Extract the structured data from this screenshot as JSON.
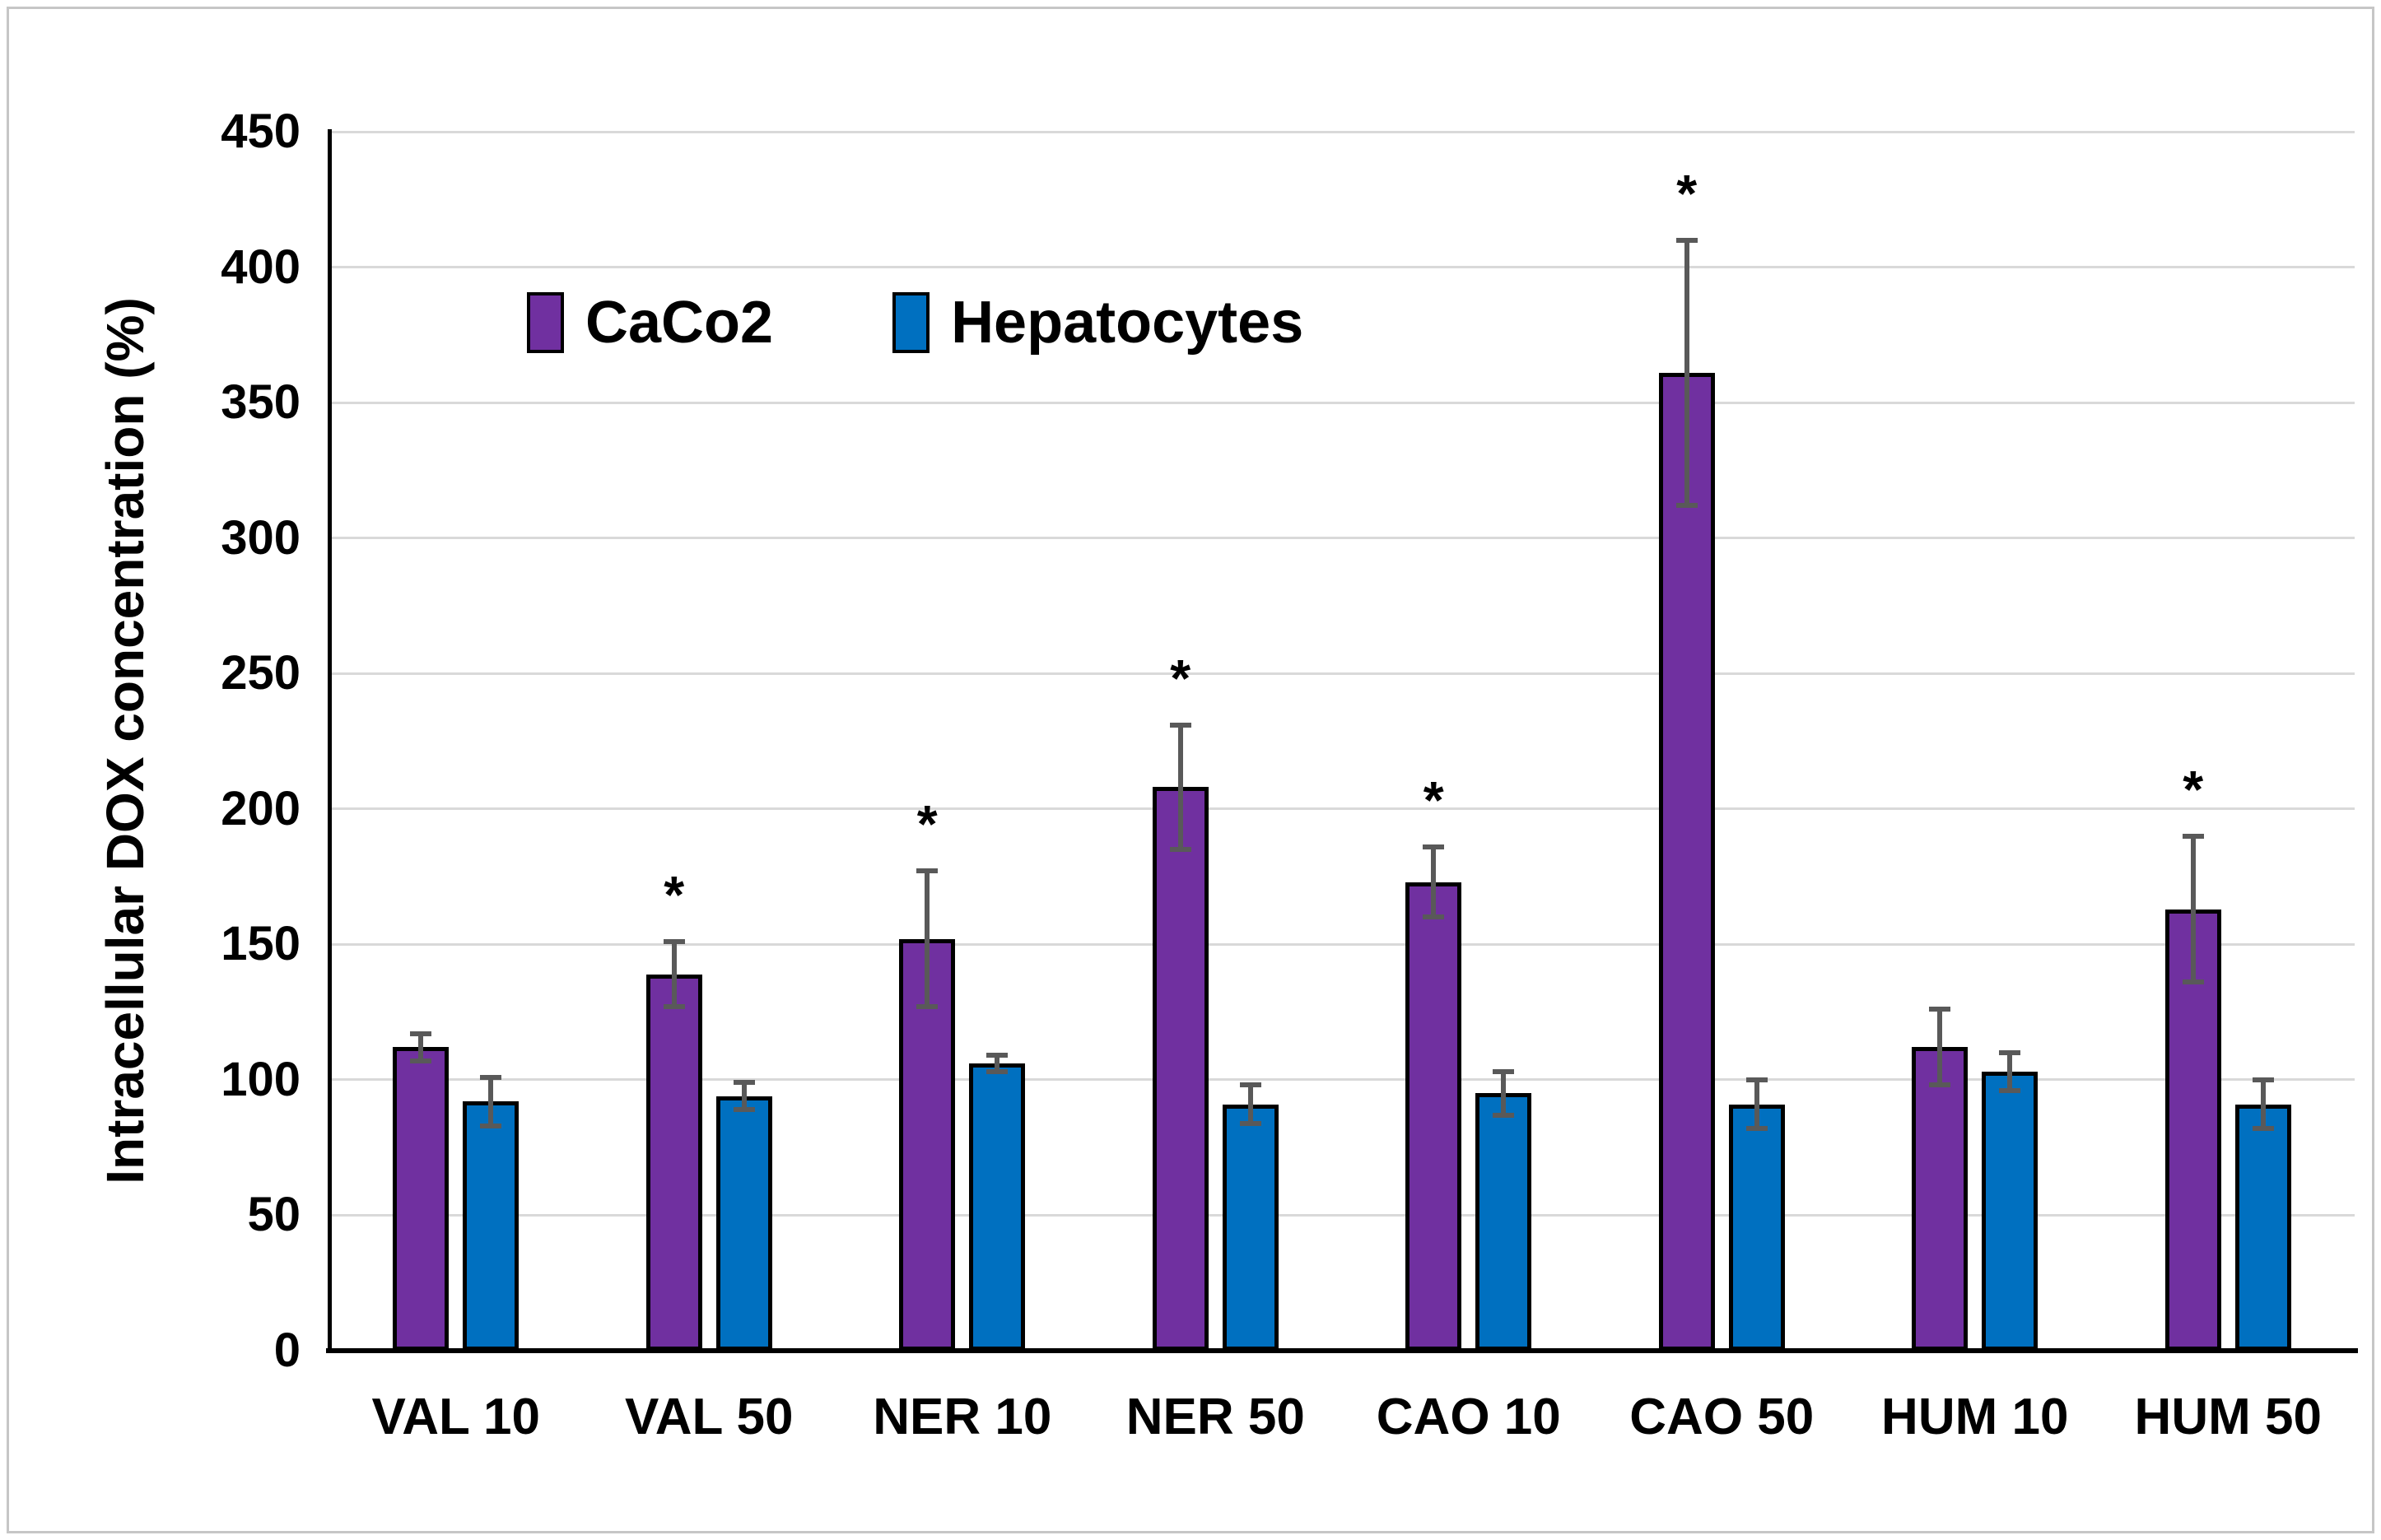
{
  "figure": {
    "background": "#ffffff",
    "border_color": "#c6c6c6"
  },
  "chart_data": {
    "type": "bar",
    "title": "",
    "xlabel": "",
    "ylabel": "Intracellular DOX concentration (%)",
    "ylim": [
      0,
      450
    ],
    "ytick_step": 50,
    "grid": true,
    "legend_position": "top-left-inside",
    "significance_marker": "*",
    "categories": [
      "VAL 10",
      "VAL 50",
      "NER 10",
      "NER 50",
      "CAO 10",
      "CAO 50",
      "HUM 10",
      "HUM 50"
    ],
    "series": [
      {
        "name": "CaCo2",
        "color": "#7030A0",
        "values": [
          112,
          139,
          152,
          208,
          173,
          361,
          112,
          163
        ],
        "errors": [
          5,
          12,
          25,
          23,
          13,
          49,
          14,
          27
        ],
        "significant": [
          false,
          true,
          true,
          true,
          true,
          true,
          false,
          true
        ]
      },
      {
        "name": "Hepatocytes",
        "color": "#0070C0",
        "values": [
          92,
          94,
          106,
          91,
          95,
          91,
          103,
          91
        ],
        "errors": [
          9,
          5,
          3,
          7,
          8,
          9,
          7,
          9
        ],
        "significant": [
          false,
          false,
          false,
          false,
          false,
          false,
          false,
          false
        ]
      }
    ],
    "bar_border_color": "#000000",
    "error_bar_color": "#595959",
    "gridline_color": "#d9d9d9",
    "axis_color": "#000000"
  }
}
